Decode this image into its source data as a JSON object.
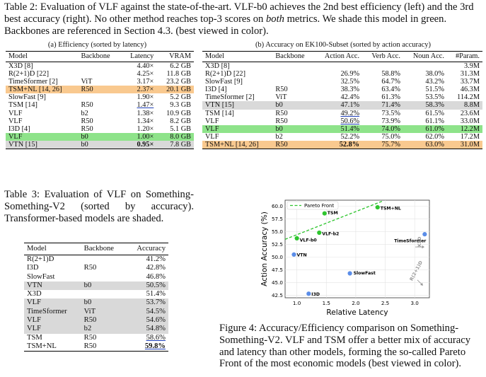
{
  "table2": {
    "caption_pre": "Table 2: Evaluation of VLF against the state-of-the-art. VLF-b0 achieves the 2nd best efficiency (left) and the 3rd best accuracy (right). No other method reaches top-3 scores on ",
    "caption_em": "both",
    "caption_post": " metrics. We shade this model in green. Backbones are referenced in Section 4.3. (best viewed in color).",
    "left": {
      "subcaption": "(a) Efficiency (sorted by latency)",
      "headers": [
        "Model",
        "Backbone",
        "Latency",
        "VRAM"
      ],
      "rows": [
        {
          "model": "X3D [8]",
          "backbone": "",
          "latency": "4.40×",
          "vram": "6.2 GB",
          "shade": ""
        },
        {
          "model": "R(2+1)D [22]",
          "backbone": "",
          "latency": "4.25×",
          "vram": "11.8 GB",
          "shade": ""
        },
        {
          "model": "TimeSformer [2]",
          "backbone": "ViT",
          "latency": "3.17×",
          "vram": "23.2 GB",
          "shade": ""
        },
        {
          "model": "TSM+NL [14, 26]",
          "backbone": "R50",
          "latency": "2.37×",
          "vram": "20.1 GB",
          "shade": "orange"
        },
        {
          "model": "SlowFast [9]",
          "backbone": "",
          "latency": "1.90×",
          "vram": "5.2 GB",
          "shade": ""
        },
        {
          "model": "TSM [14]",
          "backbone": "R50",
          "latency": "1.47×",
          "vram": "9.3 GB",
          "shade": "",
          "latency_style": "ul"
        },
        {
          "model": "VLF",
          "backbone": "b2",
          "latency": "1.38×",
          "vram": "10.9 GB",
          "shade": ""
        },
        {
          "model": "VLF",
          "backbone": "R50",
          "latency": "1.34×",
          "vram": "8.2 GB",
          "shade": ""
        },
        {
          "model": "I3D [4]",
          "backbone": "R50",
          "latency": "1.20×",
          "vram": "5.1 GB",
          "shade": ""
        },
        {
          "model": "VLF",
          "backbone": "b0",
          "latency": "1.00×",
          "vram": "8.0 GB",
          "shade": "green"
        },
        {
          "model": "VTN [15]",
          "backbone": "b0",
          "latency": "0.95×",
          "vram": "7.8 GB",
          "shade": "gray",
          "latency_style": "b"
        }
      ]
    },
    "right": {
      "subcaption": "(b) Accuracy on EK100-Subset (sorted by action accuracy)",
      "headers": [
        "Model",
        "Backbone",
        "Action Acc.",
        "Verb Acc.",
        "Noun Acc.",
        "#Param."
      ],
      "rows": [
        {
          "model": "X3D [8]",
          "backbone": "",
          "action": "",
          "verb": "",
          "noun": "",
          "param": "3.9M",
          "shade": ""
        },
        {
          "model": "R(2+1)D [22]",
          "backbone": "",
          "action": "26.9%",
          "verb": "58.8%",
          "noun": "38.0%",
          "param": "31.3M",
          "shade": ""
        },
        {
          "model": "SlowFast [9]",
          "backbone": "",
          "action": "32.5%",
          "verb": "64.7%",
          "noun": "43.2%",
          "param": "33.7M",
          "shade": ""
        },
        {
          "model": "I3D [4]",
          "backbone": "R50",
          "action": "38.3%",
          "verb": "63.4%",
          "noun": "51.5%",
          "param": "46.3M",
          "shade": ""
        },
        {
          "model": "TimeSformer [2]",
          "backbone": "ViT",
          "action": "42.4%",
          "verb": "61.3%",
          "noun": "53.5%",
          "param": "114.2M",
          "shade": ""
        },
        {
          "model": "VTN [15]",
          "backbone": "b0",
          "action": "47.1%",
          "verb": "71.4%",
          "noun": "58.3%",
          "param": "8.8M",
          "shade": "gray"
        },
        {
          "model": "TSM [14]",
          "backbone": "R50",
          "action": "49.2%",
          "verb": "73.5%",
          "noun": "61.5%",
          "param": "23.6M",
          "shade": "",
          "action_style": "ul"
        },
        {
          "model": "VLF",
          "backbone": "R50",
          "action": "50.6%",
          "verb": "73.9%",
          "noun": "61.1%",
          "param": "33.0M",
          "shade": "",
          "action_style": "ul"
        },
        {
          "model": "VLF",
          "backbone": "b0",
          "action": "51.4%",
          "verb": "74.0%",
          "noun": "61.0%",
          "param": "12.2M",
          "shade": "green"
        },
        {
          "model": "VLF",
          "backbone": "b2",
          "action": "52.2%",
          "verb": "75.0%",
          "noun": "62.0%",
          "param": "17.2M",
          "shade": ""
        },
        {
          "model": "TSM+NL [14, 26]",
          "backbone": "R50",
          "action": "52.8%",
          "verb": "75.7%",
          "noun": "63.0%",
          "param": "31.0M",
          "shade": "orange",
          "action_style": "b"
        }
      ]
    }
  },
  "table3": {
    "caption": "Table 3: Evaluation of VLF on Something-Something-V2 (sorted by accuracy). Transformer-based models are shaded.",
    "headers": [
      "Model",
      "Backbone",
      "Accuracy"
    ],
    "rows": [
      {
        "model": "R(2+1)D",
        "backbone": "",
        "acc": "41.2%",
        "shade": ""
      },
      {
        "model": "I3D",
        "backbone": "R50",
        "acc": "42.8%",
        "shade": ""
      },
      {
        "model": "SlowFast",
        "backbone": "",
        "acc": "46.8%",
        "shade": ""
      },
      {
        "model": "VTN",
        "backbone": "b0",
        "acc": "50.5%",
        "shade": "gray"
      },
      {
        "model": "X3D",
        "backbone": "",
        "acc": "51.4%",
        "shade": ""
      },
      {
        "model": "VLF",
        "backbone": "b0",
        "acc": "53.7%",
        "shade": "gray"
      },
      {
        "model": "TimeSformer",
        "backbone": "ViT",
        "acc": "54.5%",
        "shade": "gray"
      },
      {
        "model": "VLF",
        "backbone": "R50",
        "acc": "54.6%",
        "shade": "gray"
      },
      {
        "model": "VLF",
        "backbone": "b2",
        "acc": "54.8%",
        "shade": "gray"
      },
      {
        "model": "TSM",
        "backbone": "R50",
        "acc": "58.6%",
        "shade": "",
        "acc_style": "ul"
      },
      {
        "model": "TSM+NL",
        "backbone": "R50",
        "acc": "59.8%",
        "shade": "",
        "acc_style": "bul"
      }
    ]
  },
  "figure4": {
    "caption": "Figure 4: Accuracy/Efficiency comparison on Something-Something-V2. VLF and TSM offer a better mix of accuracy and latency than other models, forming the so-called Pareto Front of the most economic models (best viewed in color)."
  },
  "chart_data": {
    "type": "scatter",
    "title": "",
    "xlabel": "Relative Latency",
    "ylabel": "Action Accuracy (%)",
    "xlim": [
      0.8,
      3.25
    ],
    "ylim": [
      42.0,
      61.2
    ],
    "xticks": [
      "1.0",
      "1.5",
      "2.0",
      "2.5",
      "3.0"
    ],
    "yticks": [
      "42.5",
      "45.0",
      "47.5",
      "50.0",
      "52.5",
      "55.0",
      "57.5",
      "60.0"
    ],
    "legend": {
      "label": "Pareto Front",
      "placement": "top-left"
    },
    "points": [
      {
        "label": "TSM+NL",
        "x": 2.37,
        "y": 59.8,
        "color": "#2ec52e",
        "group": "pareto"
      },
      {
        "label": "TSM",
        "x": 1.47,
        "y": 58.6,
        "color": "#2ec52e",
        "group": "pareto"
      },
      {
        "label": "VLF-b2",
        "x": 1.38,
        "y": 54.8,
        "color": "#2ec52e",
        "group": "pareto"
      },
      {
        "label": "VLF-b0",
        "x": 1.0,
        "y": 53.7,
        "color": "#2ec52e",
        "group": "pareto"
      },
      {
        "label": "TimeSformer",
        "x": 3.17,
        "y": 54.5,
        "color": "#5b8de8",
        "group": "other"
      },
      {
        "label": "VTN",
        "x": 0.95,
        "y": 50.5,
        "color": "#5b8de8",
        "group": "other"
      },
      {
        "label": "SlowFast",
        "x": 1.9,
        "y": 46.8,
        "color": "#5b8de8",
        "group": "other"
      },
      {
        "label": "I3D",
        "x": 1.2,
        "y": 42.8,
        "color": "#5b8de8",
        "group": "other"
      }
    ],
    "pareto_line": {
      "x": [
        0.8,
        2.45
      ],
      "y": [
        53.5,
        61.0
      ],
      "color": "#2ec52e"
    },
    "offchart_annotations": [
      {
        "label": "X3D",
        "direction": "right"
      },
      {
        "label": "R(2+1)D",
        "direction": "down-right"
      }
    ]
  }
}
